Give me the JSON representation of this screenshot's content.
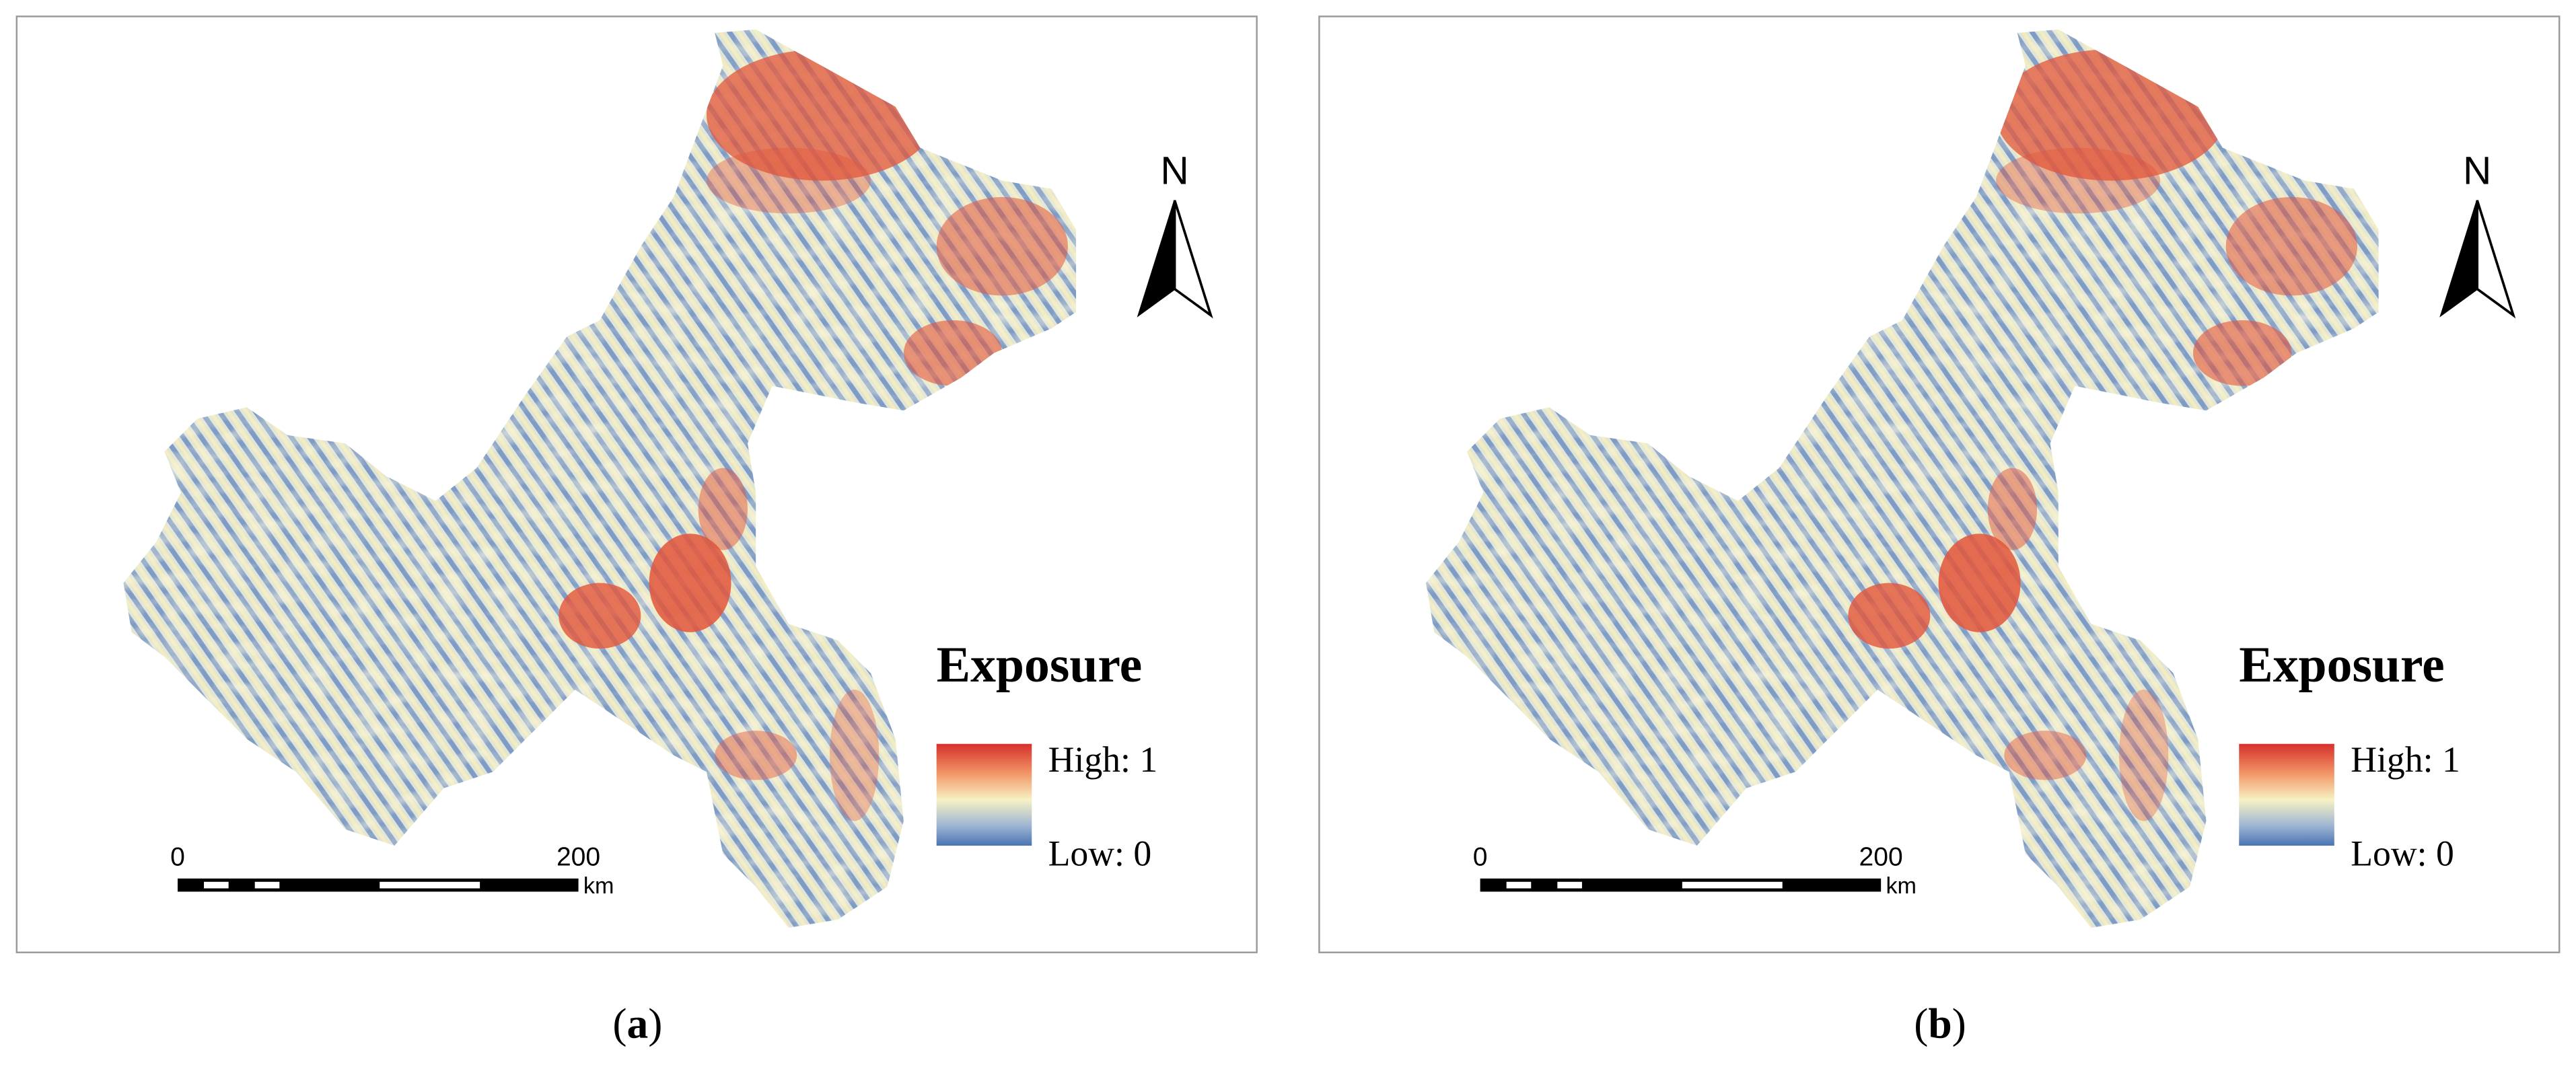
{
  "panels": [
    {
      "caption": [
        "(",
        "a",
        ")"
      ],
      "north": "N",
      "legend": {
        "title": "Exposure",
        "high": "High: 1",
        "low": "Low: 0"
      },
      "scale": {
        "start": "0",
        "end": "200",
        "unit": "km"
      }
    },
    {
      "caption": [
        "(",
        "b",
        ")"
      ],
      "north": "N",
      "legend": {
        "title": "Exposure",
        "high": "High: 1",
        "low": "Low: 0"
      },
      "scale": {
        "start": "0",
        "end": "200",
        "unit": "km"
      }
    }
  ]
}
